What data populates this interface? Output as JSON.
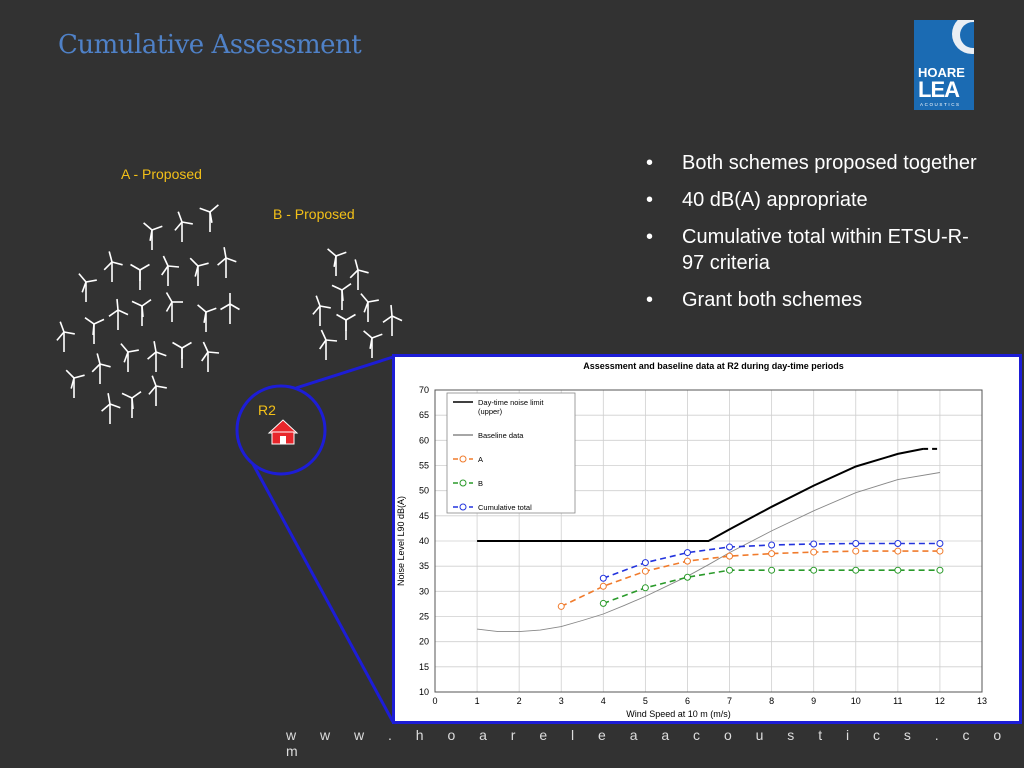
{
  "slide": {
    "title": "Cumulative Assessment",
    "footer_url": "w w w . h o a r e l e a a c o u s t i c s . c o m",
    "logo": {
      "line1": "HOARE",
      "line2": "LEA",
      "line3": "ACOUSTICS"
    },
    "bullets": [
      "Both schemes proposed together",
      "40 dB(A) appropriate",
      "Cumulative total within ETSU-R-97 criteria",
      "Grant both schemes"
    ],
    "site_map": {
      "scheme_a_label": "A - Proposed",
      "scheme_b_label": "B - Proposed",
      "receptor_label": "R2",
      "turbine_icon": "wind-turbine-icon",
      "house_icon": "house-icon"
    },
    "colors": {
      "background": "#323232",
      "title": "#4f81c7",
      "label": "#f3c018",
      "zoom_line": "#1d1dd6",
      "house": "#e8262b"
    }
  },
  "chart_data": {
    "type": "line",
    "title": "Assessment and baseline data at R2 during day-time periods",
    "xlabel": "Wind Speed at 10 m (m/s)",
    "ylabel": "Noise Level L90 dB(A)",
    "xlim": [
      0,
      13
    ],
    "ylim": [
      10,
      70
    ],
    "xticks": [
      0,
      1,
      2,
      3,
      4,
      5,
      6,
      7,
      8,
      9,
      10,
      11,
      12,
      13
    ],
    "yticks": [
      10,
      15,
      20,
      25,
      30,
      35,
      40,
      45,
      50,
      55,
      60,
      65,
      70
    ],
    "grid": true,
    "legend_position": "top-left",
    "series": [
      {
        "name": "Day-time noise limit (upper)",
        "color": "#000000",
        "style": "solid",
        "markers": false,
        "x": [
          1,
          2,
          3,
          4,
          5,
          6,
          6.5,
          7,
          8,
          9,
          10,
          11,
          11.6
        ],
        "y": [
          40,
          40,
          40,
          40,
          40,
          40,
          40,
          42.3,
          46.8,
          51,
          54.8,
          57.3,
          58.3
        ]
      },
      {
        "name": "Day-time noise limit (upper)",
        "color": "#000000",
        "style": "dashed",
        "markers": false,
        "legend": false,
        "x": [
          11.6,
          12
        ],
        "y": [
          58.3,
          58.3
        ]
      },
      {
        "name": "Baseline data",
        "color": "#888888",
        "style": "solid",
        "markers": false,
        "x": [
          1,
          1.5,
          2,
          2.5,
          3,
          3.5,
          4,
          4.5,
          5,
          5.5,
          6,
          6.5,
          7,
          8,
          9,
          10,
          11,
          12
        ],
        "y": [
          22.5,
          22,
          22,
          22.3,
          23,
          24.2,
          25.5,
          27.2,
          29,
          31,
          33,
          35.3,
          37.7,
          42,
          46,
          49.6,
          52.2,
          53.6
        ]
      },
      {
        "name": "A",
        "color": "#f07b2c",
        "style": "dashed",
        "markers": true,
        "x": [
          3,
          4,
          5,
          6,
          7,
          8,
          9,
          10,
          11,
          12
        ],
        "y": [
          27,
          31,
          34,
          36,
          37,
          37.5,
          37.8,
          38,
          38,
          38
        ]
      },
      {
        "name": "B",
        "color": "#2a9a2a",
        "style": "dashed",
        "markers": true,
        "x": [
          4,
          5,
          6,
          7,
          8,
          9,
          10,
          11,
          12
        ],
        "y": [
          27.6,
          30.7,
          32.8,
          34.2,
          34.2,
          34.2,
          34.2,
          34.2,
          34.2
        ]
      },
      {
        "name": "Cumulative total",
        "color": "#2233dd",
        "style": "dashed",
        "markers": true,
        "x": [
          4,
          5,
          6,
          7,
          8,
          9,
          10,
          11,
          12
        ],
        "y": [
          32.6,
          35.7,
          37.7,
          38.8,
          39.2,
          39.4,
          39.5,
          39.5,
          39.5
        ]
      }
    ]
  }
}
